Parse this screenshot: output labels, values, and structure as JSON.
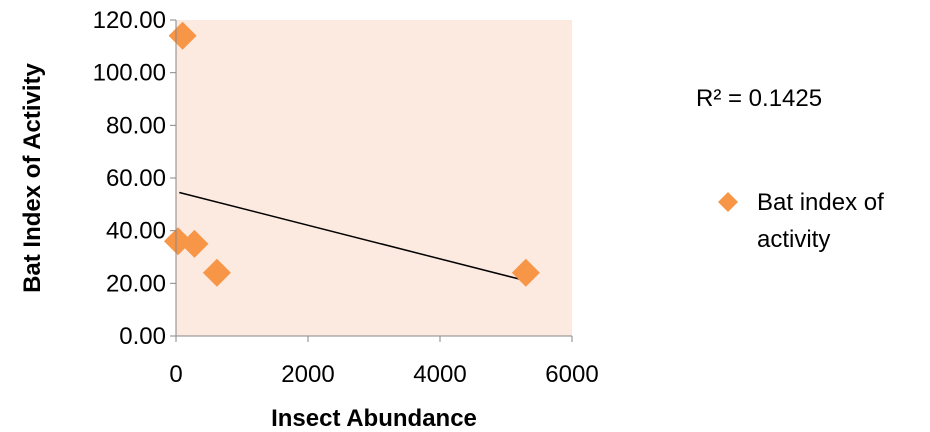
{
  "chart_data": {
    "type": "scatter",
    "xlabel": "Insect Abundance",
    "ylabel": "Bat Index of Activity",
    "xlim": [
      0,
      6000
    ],
    "ylim": [
      0,
      120
    ],
    "x_ticks": [
      "0",
      "2000",
      "4000",
      "6000"
    ],
    "y_ticks": [
      "0.00",
      "20.00",
      "40.00",
      "60.00",
      "80.00",
      "100.00",
      "120.00"
    ],
    "series": [
      {
        "name": "Bat index of activity",
        "color": "#F79646",
        "marker": "diamond",
        "points": [
          {
            "x": 100,
            "y": 114
          },
          {
            "x": 30,
            "y": 36
          },
          {
            "x": 280,
            "y": 35
          },
          {
            "x": 620,
            "y": 24
          },
          {
            "x": 5300,
            "y": 24
          }
        ]
      }
    ],
    "trendline": {
      "type": "linear",
      "x_start": 50,
      "y_start": 54.5,
      "x_end": 5300,
      "y_end": 21,
      "color": "#000000"
    },
    "annotation": "R² = 0.1425",
    "legend": {
      "position": "right",
      "lines": [
        "Bat index of",
        "activity"
      ]
    },
    "plot_area_color": "#FCE9DF",
    "grid": false
  }
}
